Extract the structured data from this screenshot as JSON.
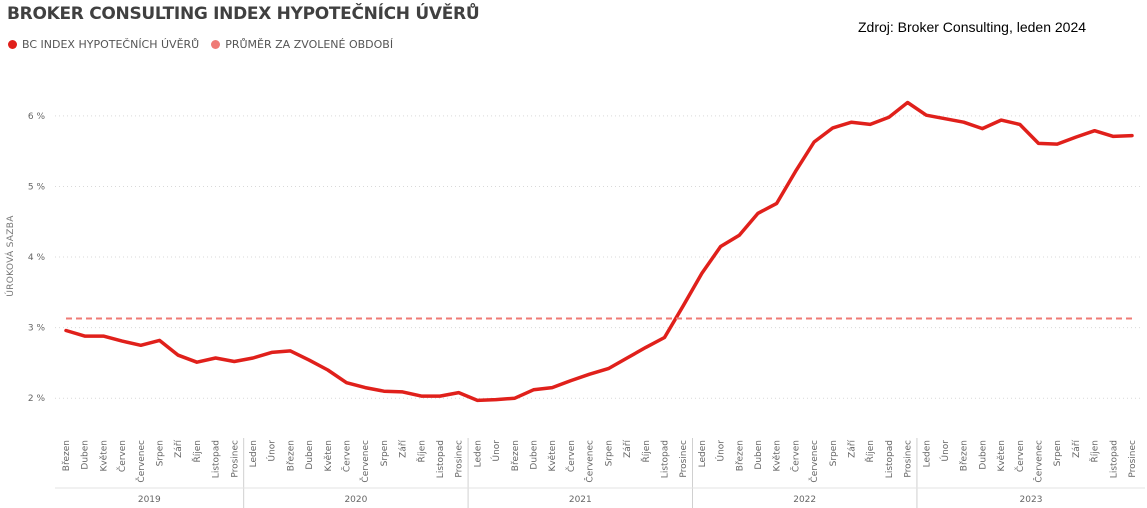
{
  "title": "BROKER CONSULTING INDEX HYPOTEČNÍCH ÚVĚRŮ",
  "source": "Zdroj: Broker Consulting, leden 2024",
  "legend": [
    {
      "label": "BC INDEX HYPOTEČNÍCH ÚVĚRŮ",
      "color": "#e0201b"
    },
    {
      "label": "PRŮMĚR ZA ZVOLENÉ OBDOBÍ",
      "color": "#ef7b76"
    }
  ],
  "chart_data": {
    "type": "line",
    "ylabel": "ÚROKOVÁ SAZBA",
    "xlabel": "",
    "ylim": [
      1.55,
      6.65
    ],
    "yticks": [
      2,
      3,
      4,
      5,
      6
    ],
    "ytick_labels": [
      "2 %",
      "3 %",
      "4 %",
      "5 %",
      "6 %"
    ],
    "grid": true,
    "years": [
      {
        "label": "2019",
        "months": [
          "Březen",
          "Duben",
          "Květen",
          "Červen",
          "Červenec",
          "Srpen",
          "Září",
          "Říjen",
          "Listopad",
          "Prosinec"
        ]
      },
      {
        "label": "2020",
        "months": [
          "Leden",
          "Únor",
          "Březen",
          "Duben",
          "Květen",
          "Červen",
          "Červenec",
          "Srpen",
          "Září",
          "Říjen",
          "Listopad",
          "Prosinec"
        ]
      },
      {
        "label": "2021",
        "months": [
          "Leden",
          "Únor",
          "Březen",
          "Duben",
          "Květen",
          "Červen",
          "Červenec",
          "Srpen",
          "Září",
          "Říjen",
          "Listopad",
          "Prosinec"
        ]
      },
      {
        "label": "2022",
        "months": [
          "Leden",
          "Únor",
          "Březen",
          "Duben",
          "Květen",
          "Červen",
          "Červenec",
          "Srpen",
          "Září",
          "Říjen",
          "Listopad",
          "Prosinec"
        ]
      },
      {
        "label": "2023",
        "months": [
          "Leden",
          "Únor",
          "Březen",
          "Duben",
          "Květen",
          "Červen",
          "Červenec",
          "Srpen",
          "Září",
          "Říjen",
          "Listopad",
          "Prosinec"
        ]
      }
    ],
    "series": [
      {
        "name": "BC INDEX HYPOTEČNÍCH ÚVĚRŮ",
        "color": "#e0201b",
        "style": "solid",
        "values": [
          2.96,
          2.88,
          2.88,
          2.81,
          2.75,
          2.82,
          2.61,
          2.51,
          2.57,
          2.52,
          2.57,
          2.65,
          2.67,
          2.54,
          2.4,
          2.22,
          2.15,
          2.1,
          2.09,
          2.03,
          2.03,
          2.08,
          1.97,
          1.98,
          2.0,
          2.12,
          2.15,
          2.25,
          2.34,
          2.42,
          2.57,
          2.72,
          2.86,
          3.31,
          3.77,
          4.15,
          4.31,
          4.62,
          4.76,
          5.21,
          5.63,
          5.83,
          5.91,
          5.88,
          5.98,
          6.19,
          6.01,
          5.96,
          5.91,
          5.82,
          5.94,
          5.88,
          5.61,
          5.6,
          5.7,
          5.79,
          5.71,
          5.72
        ]
      },
      {
        "name": "PRŮMĚR ZA ZVOLENÉ OBDOBÍ",
        "color": "#ef7b76",
        "style": "dashed",
        "values": [
          3.13
        ]
      }
    ]
  }
}
